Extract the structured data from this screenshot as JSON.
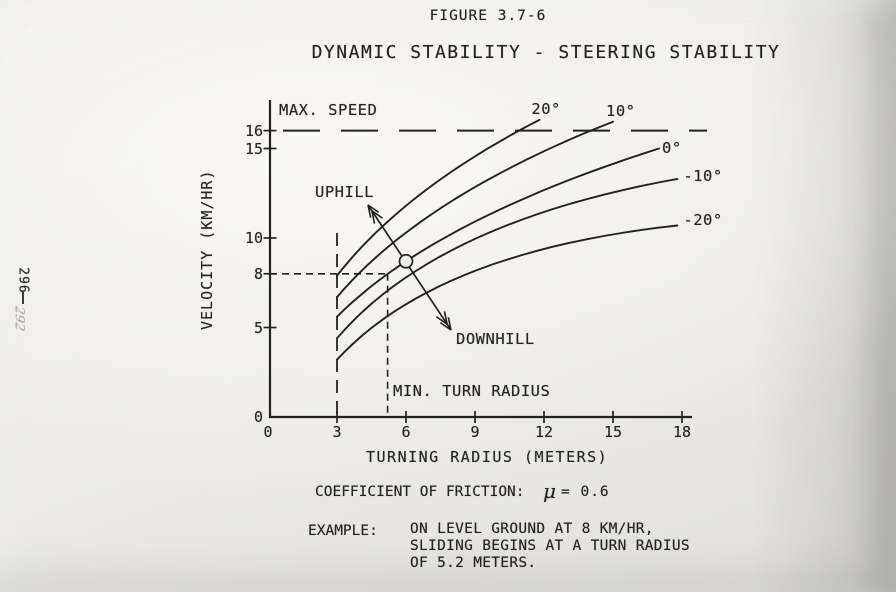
{
  "page": {
    "figure_label": "FIGURE 3.7-6",
    "title": "DYNAMIC STABILITY - STEERING STABILITY",
    "margin": {
      "page_number_printed": "296",
      "page_number_handwritten": "292"
    },
    "friction": {
      "label": "COEFFICIENT OF FRICTION:",
      "mu_symbol": "μ",
      "value": "= 0.6"
    },
    "example": {
      "label": "EXAMPLE:",
      "lines": [
        "ON LEVEL GROUND AT 8 KM/HR,",
        "SLIDING BEGINS AT A TURN RADIUS",
        "OF 5.2 METERS."
      ]
    }
  },
  "chart_data": {
    "type": "line",
    "title": "DYNAMIC STABILITY - STEERING STABILITY",
    "xlabel": "TURNING RADIUS (METERS)",
    "ylabel": "VELOCITY (KM/HR)",
    "xlim": [
      0,
      18.5
    ],
    "ylim": [
      0,
      17.8
    ],
    "xticks": [
      0,
      3,
      6,
      9,
      12,
      15,
      18
    ],
    "yticks": [
      0,
      5,
      8,
      10,
      15,
      16
    ],
    "grid": false,
    "annotations": {
      "max_speed_label": "MAX. SPEED",
      "max_speed_kmhr": 16,
      "min_turn_radius_label": "MIN. TURN RADIUS",
      "min_turn_radius_m": 3,
      "uphill_label": "UPHILL",
      "downhill_label": "DOWNHILL",
      "example_point": {
        "turning_radius_m": 5.2,
        "velocity_kmhr": 8
      },
      "marker_point": {
        "turning_radius_m": 6.0,
        "velocity_kmhr": 8.7
      }
    },
    "series": [
      {
        "name": "20°",
        "slope_deg": 20,
        "points_r_v": [
          [
            3,
            7.9
          ],
          [
            6,
            11.8
          ],
          [
            11.8,
            16.6
          ]
        ]
      },
      {
        "name": "10°",
        "slope_deg": 10,
        "points_r_v": [
          [
            3,
            6.7
          ],
          [
            6,
            10.3
          ],
          [
            15.0,
            16.5
          ]
        ]
      },
      {
        "name": "0°",
        "slope_deg": 0,
        "points_r_v": [
          [
            3,
            5.6
          ],
          [
            6,
            8.7
          ],
          [
            17.0,
            15.0
          ]
        ]
      },
      {
        "name": "-10°",
        "slope_deg": -10,
        "points_r_v": [
          [
            3,
            4.4
          ],
          [
            6,
            7.8
          ],
          [
            17.8,
            13.3
          ]
        ]
      },
      {
        "name": "-20°",
        "slope_deg": -20,
        "points_r_v": [
          [
            3,
            3.2
          ],
          [
            6,
            6.3
          ],
          [
            17.8,
            10.7
          ]
        ]
      }
    ],
    "ink_color": "#222220",
    "paper_color": "#edecea"
  }
}
